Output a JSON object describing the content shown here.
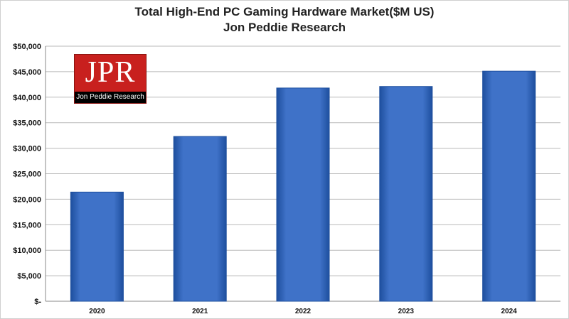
{
  "title_line1": "Total High-End PC Gaming Hardware Market($M US)",
  "title_line2": "Jon Peddie Research",
  "logo": {
    "main": "JPR",
    "sub": "Jon Peddie Research"
  },
  "colors": {
    "bar": "#3f72c8",
    "bar_edge": "#1e4f9e",
    "grid": "#b9b9b9",
    "logo": "#c8201e"
  },
  "chart_data": {
    "type": "bar",
    "title": "Total High-End PC Gaming Hardware Market($M US)",
    "subtitle": "Jon Peddie Research",
    "categories": [
      "2020",
      "2021",
      "2022",
      "2023",
      "2024"
    ],
    "values": [
      21400,
      32300,
      41800,
      42100,
      45100
    ],
    "ylim": [
      0,
      50000
    ],
    "ytick_values": [
      0,
      5000,
      10000,
      15000,
      20000,
      25000,
      30000,
      35000,
      40000,
      45000,
      50000
    ],
    "ytick_labels": [
      "$-",
      "$5,000",
      "$10,000",
      "$15,000",
      "$20,000",
      "$25,000",
      "$30,000",
      "$35,000",
      "$40,000",
      "$45,000",
      "$50,000"
    ],
    "grid": true,
    "legend": "none",
    "xlabel": "",
    "ylabel": ""
  }
}
